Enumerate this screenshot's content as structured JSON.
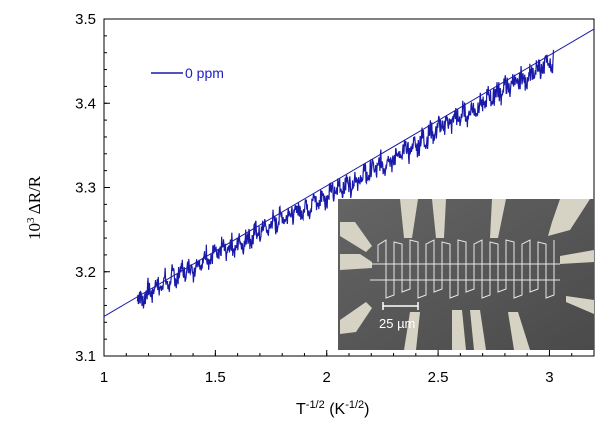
{
  "chart_data": {
    "type": "line",
    "xlabel_main": "T",
    "xlabel_sup1": "-1/2",
    "xlabel_mid": " (K",
    "xlabel_sup2": "-1/2",
    "xlabel_end": ")",
    "ylabel_sup": "3",
    "ylabel_pre": "10",
    "ylabel_post": " ΔR/R",
    "xlim": [
      1,
      3.2
    ],
    "ylim": [
      3.1,
      3.5
    ],
    "xticks": [
      "1",
      "1.5",
      "2",
      "2.5",
      "3"
    ],
    "xtick_values": [
      1,
      1.5,
      2,
      2.5,
      3
    ],
    "yticks": [
      "3.1",
      "3.2",
      "3.3",
      "3.4",
      "3.5"
    ],
    "ytick_values": [
      3.1,
      3.2,
      3.3,
      3.4,
      3.5
    ],
    "grid": false,
    "legend_position": "top-left",
    "series": [
      {
        "name": "0 ppm",
        "color": "#1a1aa8",
        "x_range": [
          1.15,
          3.02
        ],
        "points": [
          [
            1.15,
            3.165
          ],
          [
            1.2,
            3.175
          ],
          [
            1.25,
            3.185
          ],
          [
            1.3,
            3.19
          ],
          [
            1.35,
            3.2
          ],
          [
            1.4,
            3.205
          ],
          [
            1.45,
            3.215
          ],
          [
            1.5,
            3.22
          ],
          [
            1.55,
            3.228
          ],
          [
            1.6,
            3.232
          ],
          [
            1.65,
            3.24
          ],
          [
            1.7,
            3.248
          ],
          [
            1.75,
            3.255
          ],
          [
            1.8,
            3.265
          ],
          [
            1.85,
            3.27
          ],
          [
            1.9,
            3.275
          ],
          [
            1.95,
            3.283
          ],
          [
            2.0,
            3.29
          ],
          [
            2.05,
            3.298
          ],
          [
            2.1,
            3.305
          ],
          [
            2.15,
            3.31
          ],
          [
            2.2,
            3.32
          ],
          [
            2.25,
            3.328
          ],
          [
            2.3,
            3.335
          ],
          [
            2.35,
            3.342
          ],
          [
            2.4,
            3.35
          ],
          [
            2.45,
            3.36
          ],
          [
            2.5,
            3.37
          ],
          [
            2.55,
            3.378
          ],
          [
            2.6,
            3.385
          ],
          [
            2.65,
            3.39
          ],
          [
            2.7,
            3.4
          ],
          [
            2.75,
            3.41
          ],
          [
            2.8,
            3.418
          ],
          [
            2.85,
            3.425
          ],
          [
            2.9,
            3.43
          ],
          [
            2.95,
            3.44
          ],
          [
            3.0,
            3.448
          ],
          [
            3.02,
            3.45
          ]
        ]
      }
    ],
    "fit_line": {
      "color": "#1a1aa8",
      "points": [
        [
          1.0,
          3.147
        ],
        [
          3.2,
          3.488
        ]
      ]
    }
  },
  "inset": {
    "scale_label": "25 µm",
    "background": "#5a5a5a",
    "pad_color": "#d8d4c8"
  }
}
